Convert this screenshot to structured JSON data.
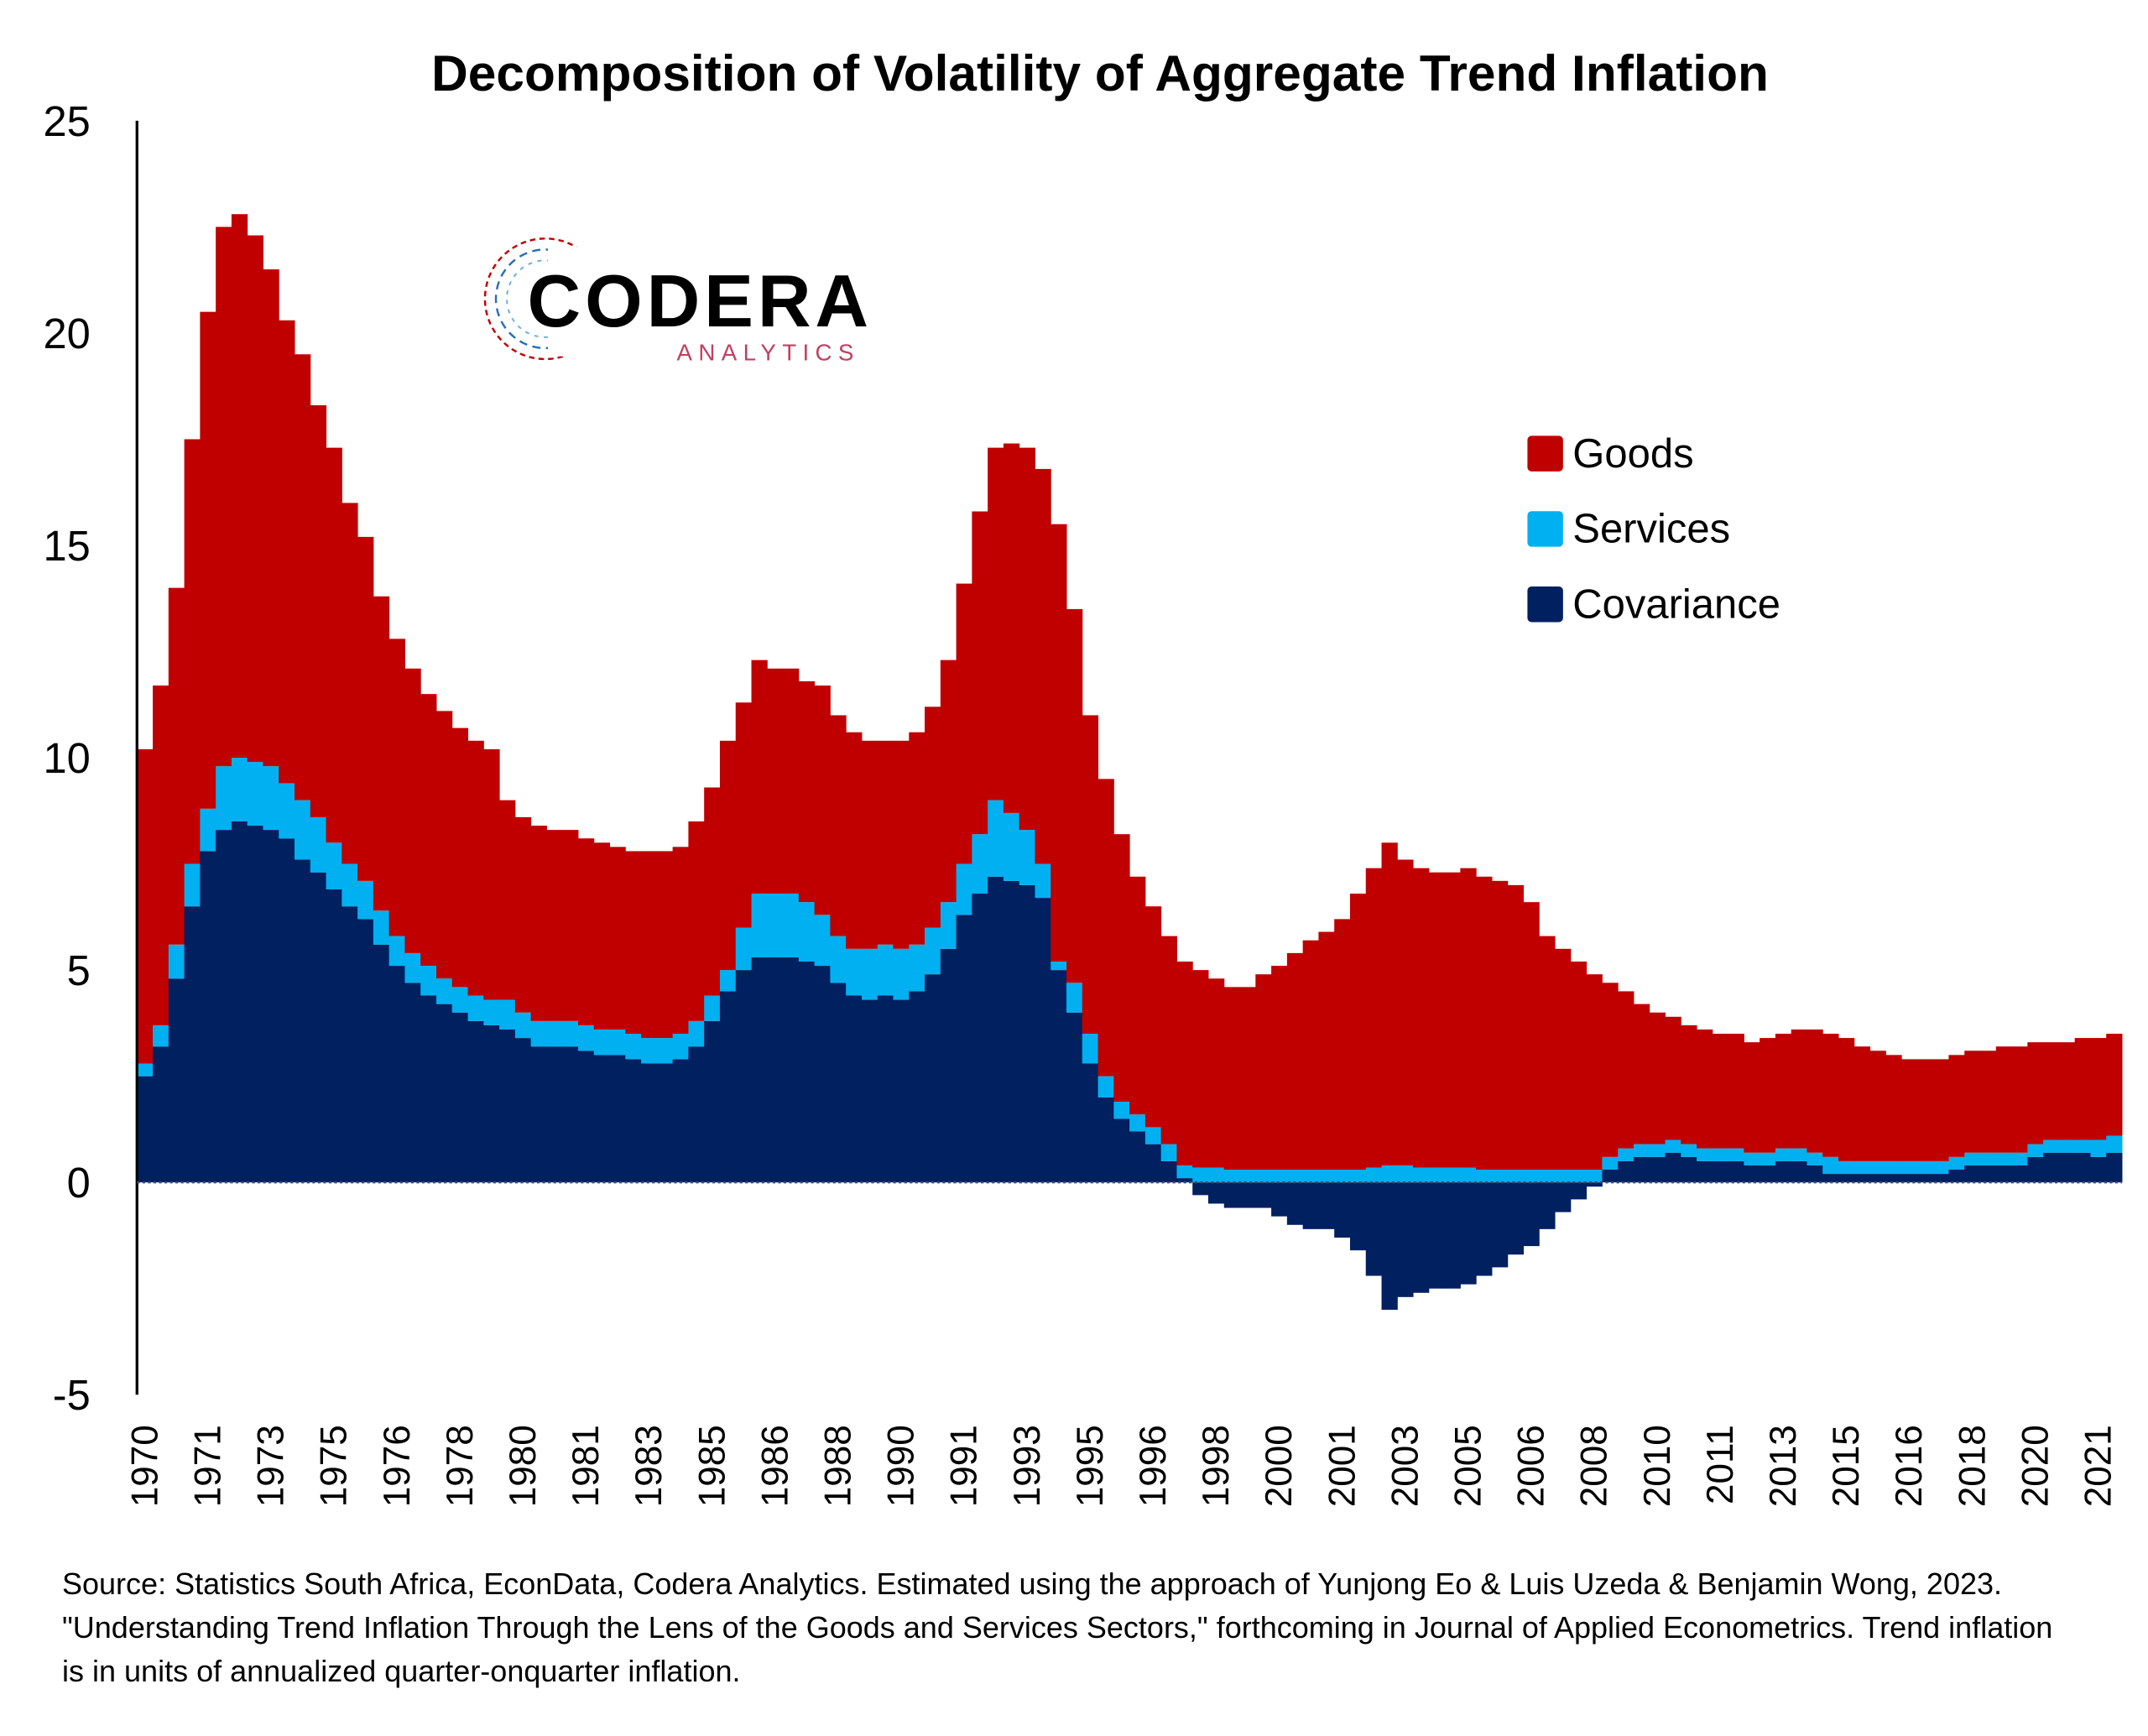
{
  "chart_data": {
    "type": "stacked_bar",
    "title": "Decomposition of Volatility of Aggregate Trend Inflation",
    "logo": {
      "name": "CODERA",
      "subtitle": "ANALYTICS"
    },
    "source": "Source: Statistics South Africa, EconData, Codera Analytics. Estimated using the approach of Yunjong Eo & Luis Uzeda & Benjamin Wong, 2023. \"Understanding Trend Inflation Through the Lens of the Goods and Services Sectors,\" forthcoming in Journal of Applied Econometrics. Trend inflation is in units of annualized quarter-onquarter inflation.",
    "ylim": [
      -5,
      25
    ],
    "yticks": [
      -5,
      0,
      5,
      10,
      15,
      20,
      25
    ],
    "grid": false,
    "legend": "upper right",
    "categories": [
      "1970",
      null,
      null,
      null,
      "1971",
      null,
      null,
      null,
      "1973",
      null,
      null,
      null,
      "1975",
      null,
      null,
      null,
      "1976",
      null,
      null,
      null,
      "1978",
      null,
      null,
      null,
      "1980",
      null,
      null,
      null,
      "1981",
      null,
      null,
      null,
      "1983",
      null,
      null,
      null,
      "1985",
      null,
      null,
      null,
      "1986",
      null,
      null,
      null,
      "1988",
      null,
      null,
      null,
      "1990",
      null,
      null,
      null,
      "1991",
      null,
      null,
      null,
      "1993",
      null,
      null,
      null,
      "1995",
      null,
      null,
      null,
      "1996",
      null,
      null,
      null,
      "1998",
      null,
      null,
      null,
      "2000",
      null,
      null,
      null,
      "2001",
      null,
      null,
      null,
      "2003",
      null,
      null,
      null,
      "2005",
      null,
      null,
      null,
      "2006",
      null,
      null,
      null,
      "2008",
      null,
      null,
      null,
      "2010",
      null,
      null,
      null,
      "2011",
      null,
      null,
      null,
      "2013",
      null,
      null,
      null,
      "2015",
      null,
      null,
      null,
      "2016",
      null,
      null,
      null,
      "2018",
      null,
      null,
      null,
      "2020",
      null,
      null,
      null,
      "2021",
      null
    ],
    "series": [
      {
        "name": "Covariance",
        "color": "#002060",
        "values": [
          2.5,
          3.2,
          4.8,
          6.5,
          7.8,
          8.3,
          8.5,
          8.4,
          8.3,
          8.1,
          7.6,
          7.3,
          6.9,
          6.5,
          6.2,
          5.6,
          5.1,
          4.7,
          4.4,
          4.2,
          4.0,
          3.8,
          3.7,
          3.6,
          3.4,
          3.2,
          3.2,
          3.2,
          3.1,
          3.0,
          3.0,
          2.9,
          2.8,
          2.8,
          2.9,
          3.2,
          3.8,
          4.5,
          5.0,
          5.3,
          5.3,
          5.3,
          5.2,
          5.1,
          4.7,
          4.4,
          4.3,
          4.4,
          4.3,
          4.5,
          4.9,
          5.5,
          6.3,
          6.8,
          7.2,
          7.1,
          7.0,
          6.7,
          5.0,
          4.0,
          2.8,
          2.0,
          1.5,
          1.2,
          0.9,
          0.5,
          0.1,
          -0.3,
          -0.5,
          -0.6,
          -0.6,
          -0.6,
          -0.8,
          -1.0,
          -1.1,
          -1.1,
          -1.3,
          -1.6,
          -2.2,
          -3.0,
          -2.7,
          -2.6,
          -2.5,
          -2.5,
          -2.4,
          -2.2,
          -2.0,
          -1.7,
          -1.5,
          -1.1,
          -0.7,
          -0.4,
          -0.1,
          0.3,
          0.5,
          0.6,
          0.6,
          0.7,
          0.6,
          0.5,
          0.5,
          0.5,
          0.4,
          0.4,
          0.5,
          0.5,
          0.4,
          0.2,
          0.2,
          0.2,
          0.2,
          0.2,
          0.2,
          0.2,
          0.2,
          0.3,
          0.4,
          0.4,
          0.4,
          0.4,
          0.6,
          0.7,
          0.7,
          0.7,
          0.6,
          0.7
        ]
      },
      {
        "name": "Services",
        "color": "#00b0f0",
        "values": [
          0.3,
          0.5,
          0.8,
          1.0,
          1.0,
          1.5,
          1.5,
          1.5,
          1.5,
          1.3,
          1.4,
          1.3,
          1.1,
          1.0,
          0.9,
          0.8,
          0.7,
          0.7,
          0.7,
          0.6,
          0.6,
          0.6,
          0.6,
          0.7,
          0.6,
          0.6,
          0.6,
          0.6,
          0.6,
          0.6,
          0.6,
          0.6,
          0.6,
          0.6,
          0.6,
          0.6,
          0.6,
          0.5,
          1.0,
          1.5,
          1.5,
          1.5,
          1.4,
          1.2,
          1.1,
          1.1,
          1.2,
          1.2,
          1.2,
          1.1,
          1.1,
          1.1,
          1.2,
          1.4,
          1.8,
          1.6,
          1.3,
          0.8,
          0.2,
          0.7,
          0.7,
          0.5,
          0.4,
          0.4,
          0.4,
          0.4,
          0.3,
          0.35,
          0.35,
          0.3,
          0.3,
          0.3,
          0.3,
          0.3,
          0.3,
          0.3,
          0.3,
          0.3,
          0.35,
          0.4,
          0.4,
          0.35,
          0.35,
          0.35,
          0.35,
          0.3,
          0.3,
          0.3,
          0.3,
          0.3,
          0.3,
          0.3,
          0.3,
          0.3,
          0.3,
          0.3,
          0.3,
          0.3,
          0.3,
          0.3,
          0.3,
          0.3,
          0.3,
          0.3,
          0.3,
          0.3,
          0.3,
          0.4,
          0.3,
          0.3,
          0.3,
          0.3,
          0.3,
          0.3,
          0.3,
          0.3,
          0.3,
          0.3,
          0.3,
          0.3,
          0.3,
          0.3,
          0.3,
          0.3,
          0.4,
          0.4
        ]
      },
      {
        "name": "Goods",
        "color": "#c00000",
        "values": [
          7.4,
          8.0,
          8.4,
          10.0,
          11.7,
          12.7,
          12.8,
          12.4,
          11.7,
          10.9,
          10.5,
          9.7,
          9.3,
          8.5,
          8.1,
          7.4,
          7.0,
          6.7,
          6.4,
          6.3,
          6.1,
          6.0,
          5.9,
          4.7,
          4.6,
          4.6,
          4.5,
          4.5,
          4.4,
          4.4,
          4.3,
          4.3,
          4.4,
          4.4,
          4.4,
          4.7,
          4.9,
          5.4,
          5.3,
          5.5,
          5.3,
          5.3,
          5.2,
          5.4,
          5.2,
          5.1,
          4.9,
          4.8,
          4.9,
          5.0,
          5.2,
          5.7,
          6.6,
          7.6,
          8.3,
          8.7,
          9.0,
          9.3,
          10.3,
          8.8,
          7.5,
          7.0,
          6.3,
          5.6,
          5.2,
          4.9,
          4.8,
          4.65,
          4.45,
          4.3,
          4.3,
          4.6,
          4.8,
          5.1,
          5.4,
          5.6,
          5.9,
          6.5,
          7.05,
          7.6,
          7.2,
          7.05,
          6.95,
          6.95,
          7.05,
          6.9,
          6.8,
          6.7,
          6.3,
          5.5,
          5.2,
          4.9,
          4.6,
          4.1,
          3.7,
          3.3,
          3.1,
          2.9,
          2.8,
          2.8,
          2.7,
          2.7,
          2.6,
          2.7,
          2.7,
          2.8,
          2.9,
          2.9,
          2.9,
          2.7,
          2.6,
          2.5,
          2.4,
          2.4,
          2.4,
          2.4,
          2.4,
          2.4,
          2.5,
          2.5,
          2.4,
          2.3,
          2.3,
          2.4,
          2.4,
          2.4
        ]
      }
    ]
  }
}
